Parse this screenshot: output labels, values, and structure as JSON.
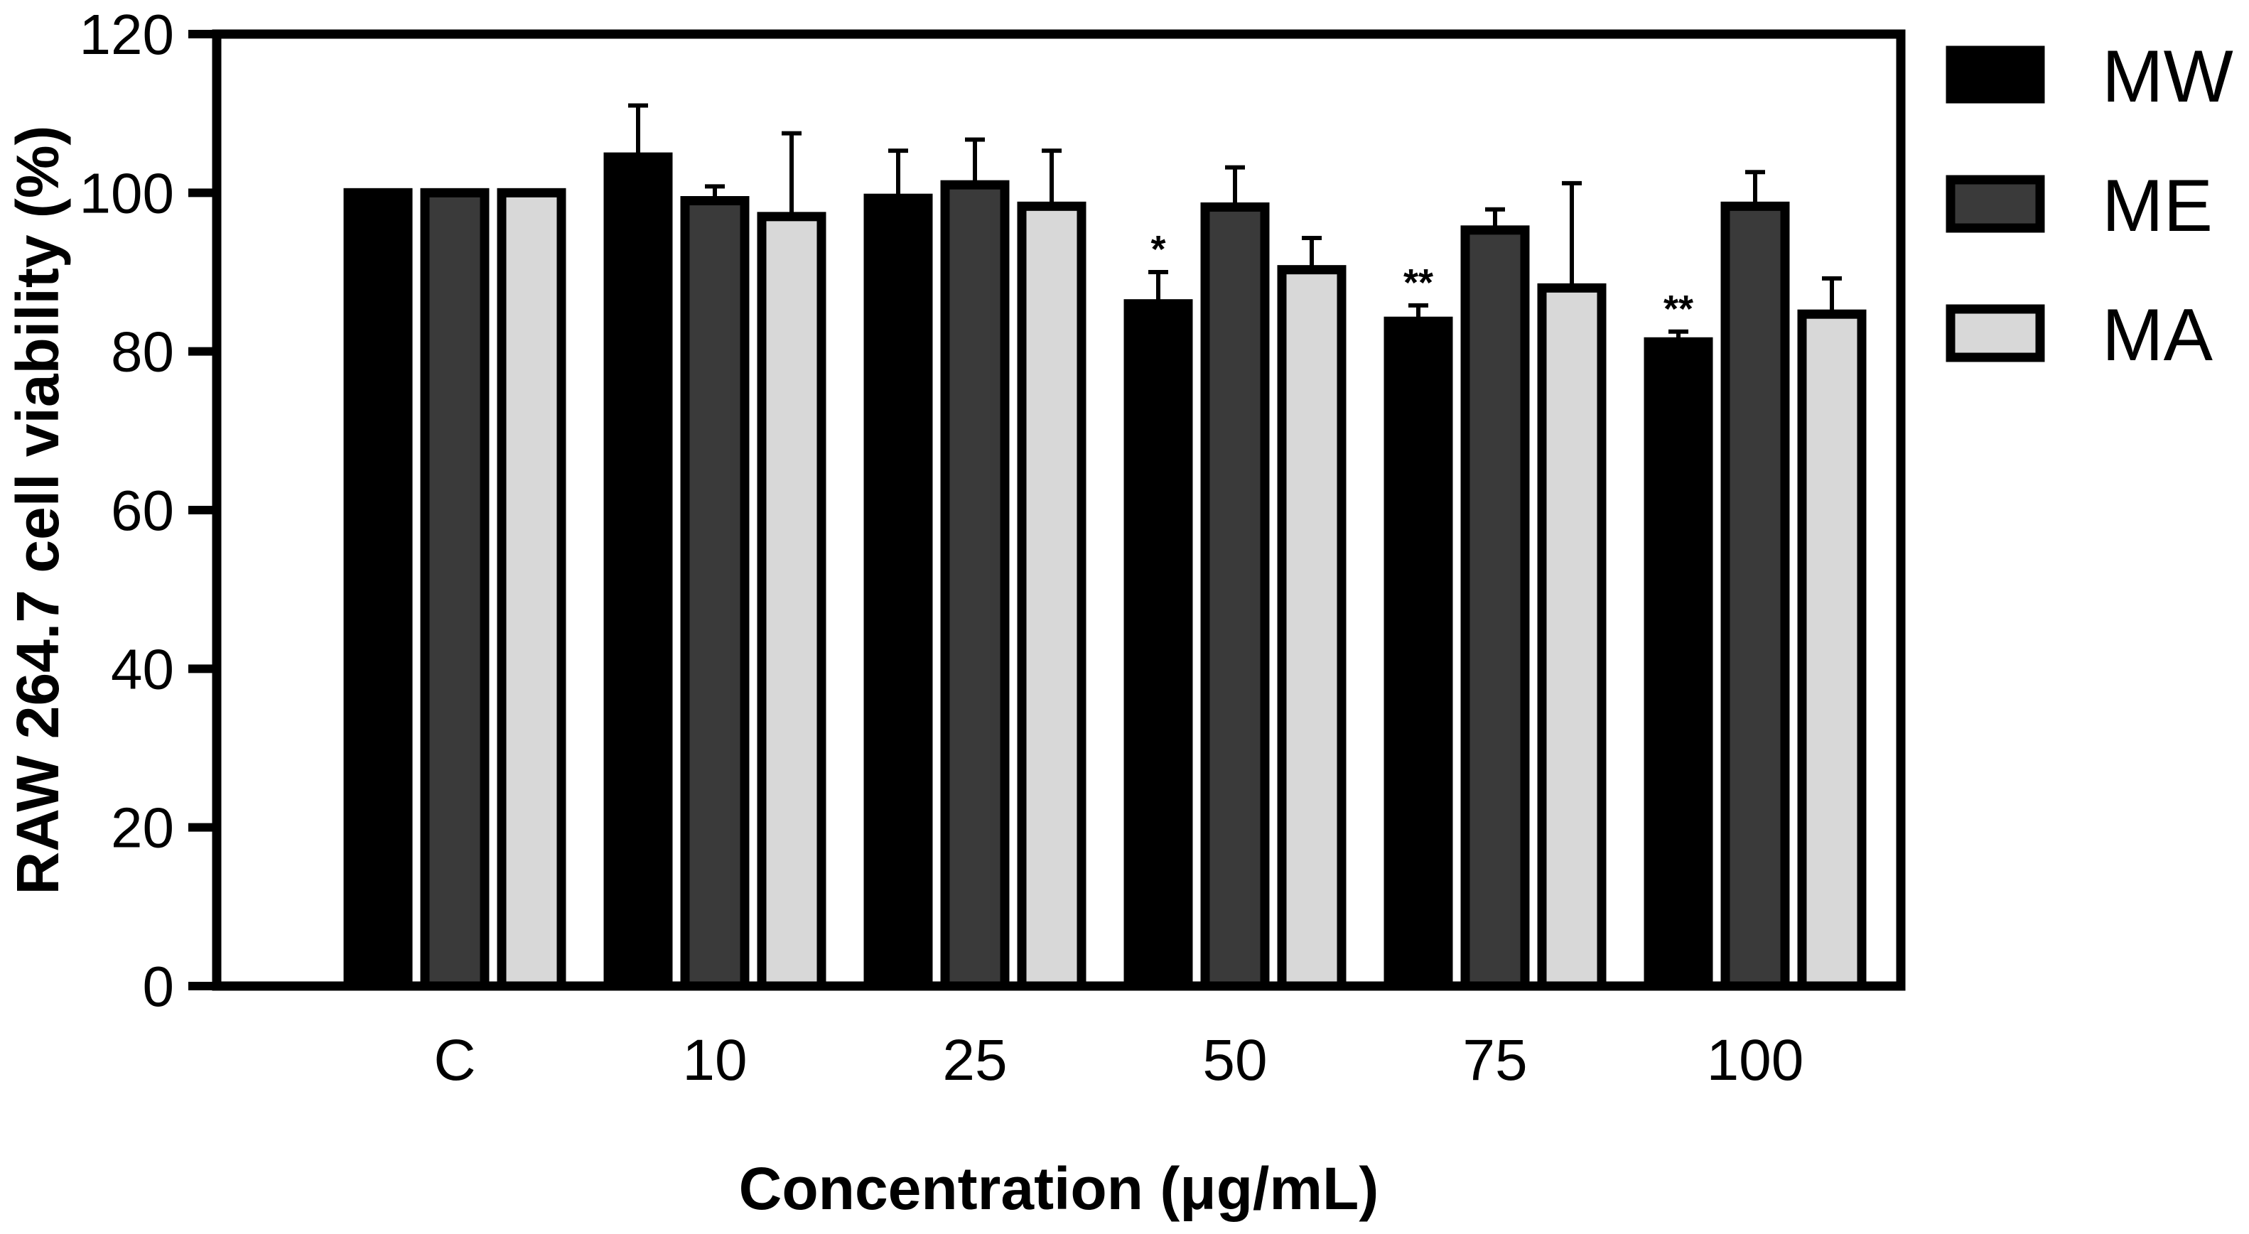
{
  "chart_data": {
    "type": "bar",
    "title": "",
    "xlabel": "Concentration (μg/mL)",
    "ylabel": "RAW 264.7 cell viability (%)",
    "ylim": [
      0,
      120
    ],
    "yticks": [
      "0",
      "20",
      "40",
      "60",
      "80",
      "100",
      "120"
    ],
    "categories": [
      "C",
      "10",
      "25",
      "50",
      "75",
      "100"
    ],
    "series": [
      {
        "name": "MW",
        "color": "#000000",
        "values": [
          100,
          104.5,
          99.3,
          86,
          83.8,
          81.2
        ],
        "errors": [
          0,
          6.5,
          6,
          4,
          2,
          1.3
        ],
        "significance": [
          "",
          "",
          "",
          "*",
          "**",
          "**"
        ]
      },
      {
        "name": "ME",
        "color": "#3a3a3a",
        "values": [
          100,
          99,
          101,
          98.2,
          95.3,
          98.3
        ],
        "errors": [
          0,
          1.8,
          5.7,
          5,
          2.6,
          4.3
        ],
        "significance": [
          "",
          "",
          "",
          "",
          "",
          ""
        ]
      },
      {
        "name": "MA",
        "color": "#d8d8d8",
        "values": [
          100,
          97,
          98.3,
          90.3,
          88,
          84.7
        ],
        "errors": [
          0,
          10.5,
          7,
          4,
          13.2,
          4.5
        ],
        "significance": [
          "",
          "",
          "",
          "",
          "",
          ""
        ]
      }
    ],
    "legend": {
      "position": "right"
    }
  }
}
